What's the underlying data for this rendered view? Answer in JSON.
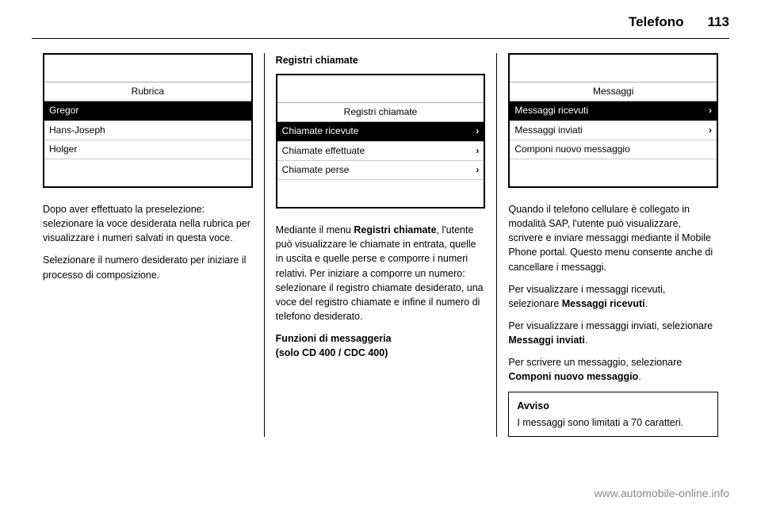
{
  "header": {
    "title": "Telefono",
    "page": "113"
  },
  "col1": {
    "screen": {
      "title": "Rubrica",
      "items": [
        "Gregor",
        "Hans-Joseph",
        "Holger"
      ],
      "selected_index": 0,
      "has_chevron": false
    },
    "para1": "Dopo aver effettuato la preselezione: selezionare la voce desiderata nella rubrica per visualizzare i numeri salvati in questa voce.",
    "para2": "Selezionare il numero desiderato per iniziare il processo di composizione."
  },
  "col2": {
    "heading": "Registri chiamate",
    "screen": {
      "title": "Registri chiamate",
      "items": [
        "Chiamate ricevute",
        "Chiamate effettuate",
        "Chiamate perse"
      ],
      "selected_index": 0,
      "has_chevron": true
    },
    "para1_a": "Mediante il menu ",
    "para1_b": "Registri chiamate",
    "para1_c": ", l'utente può visualizzare le chiamate in entrata, quelle in uscita e quelle perse e comporre i numeri relativi. Per iniziare a comporre un numero: selezionare il registro chiamate desiderato, una voce del registro chiamate e infine il numero di telefono desiderato.",
    "sub_a": "Funzioni di messaggeria",
    "sub_b": "(solo CD 400 / CDC 400)"
  },
  "col3": {
    "screen": {
      "title": "Messaggi",
      "items": [
        "Messaggi ricevuti",
        "Messaggi inviati",
        "Componi nuovo messaggio"
      ],
      "selected_index": 0,
      "chevron_indices": [
        0,
        1
      ]
    },
    "para1": "Quando il telefono cellulare è collegato in modalità SAP, l'utente può visualizzare, scrivere e inviare messaggi mediante il Mobile Phone portal. Questo menu consente anche di cancellare i messaggi.",
    "para2_a": "Per visualizzare i messaggi ricevuti, selezionare ",
    "para2_b": "Messaggi ricevuti",
    "para2_c": ".",
    "para3_a": "Per visualizzare i messaggi inviati, selezionare ",
    "para3_b": "Messaggi inviati",
    "para3_c": ".",
    "para4_a": "Per scrivere un messaggio, selezionare ",
    "para4_b": "Componi nuovo messaggio",
    "para4_c": ".",
    "notice_label": "Avviso",
    "notice_text": "I messaggi sono limitati a 70 caratteri."
  },
  "watermark": "www.automobile-online.info"
}
